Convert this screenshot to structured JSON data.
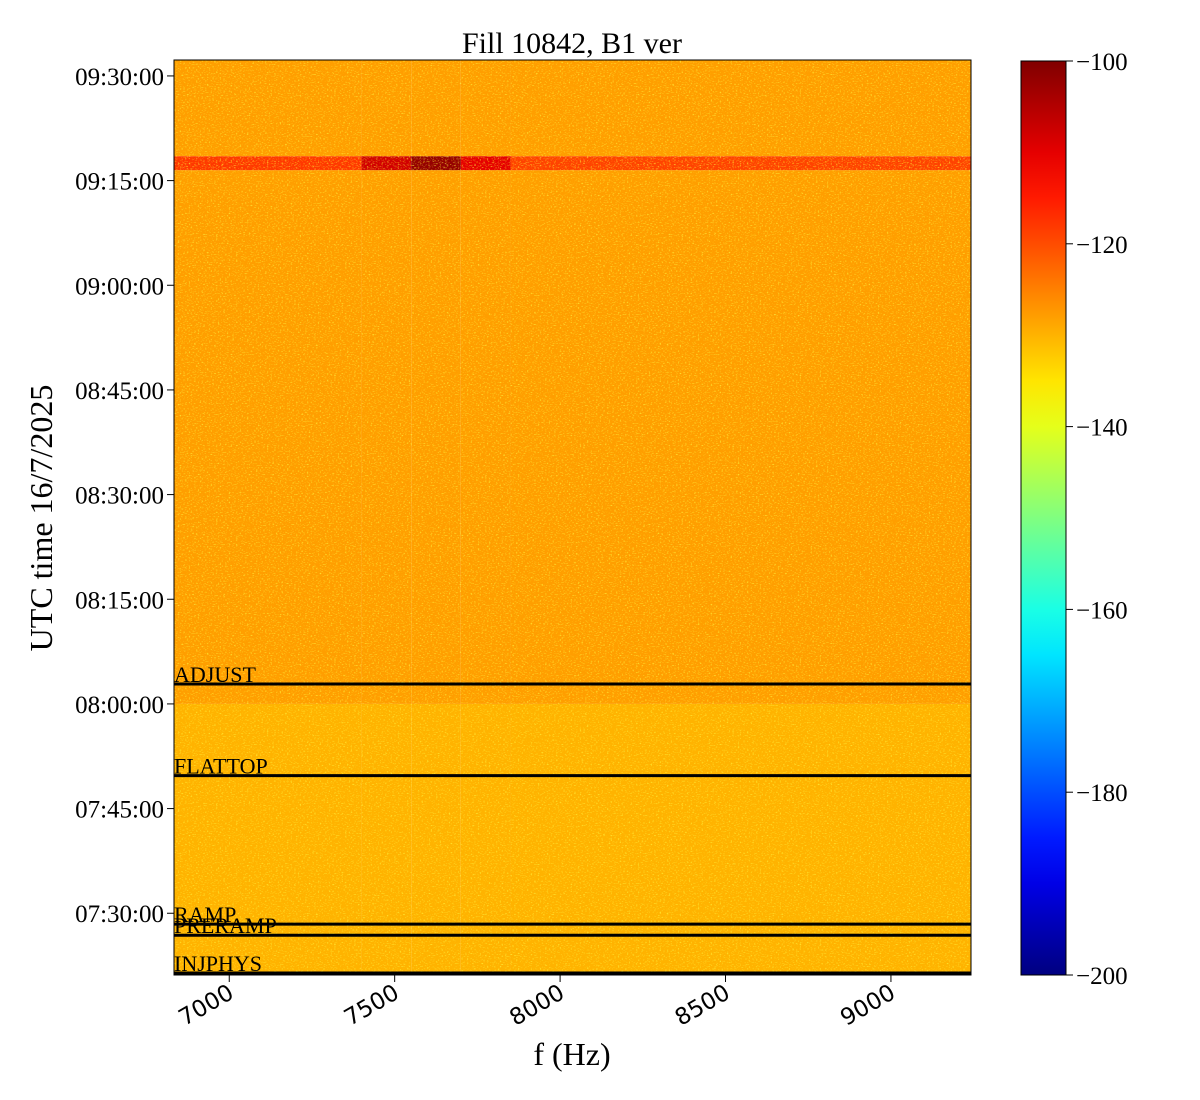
{
  "chart_data": {
    "type": "heatmap",
    "title": "Fill 10842, B1 ver",
    "xlabel": "f (Hz)",
    "ylabel": "UTC time 16/7/2025",
    "xlim": [
      6833,
      9242
    ],
    "xticks": [
      7000,
      7500,
      8000,
      8500,
      9000
    ],
    "ylim": [
      "07:21:09",
      "09:32:17"
    ],
    "yticks": [
      "07:30:00",
      "07:45:00",
      "08:00:00",
      "08:15:00",
      "08:30:00",
      "08:45:00",
      "09:00:00",
      "09:15:00",
      "09:30:00"
    ],
    "x_edges": [
      6833,
      7400,
      7550,
      7700,
      7850,
      9242
    ],
    "y_edges": [
      "07:21:09",
      "08:00:00",
      "09:16:30",
      "09:18:30",
      "09:32:17"
    ],
    "z": [
      [
        -130,
        -130,
        -130,
        -130,
        -130
      ],
      [
        -128,
        -128,
        -128,
        -128,
        -128
      ],
      [
        -118,
        -108,
        -102,
        -110,
        -119
      ],
      [
        -128,
        -128,
        -128,
        -128,
        -128
      ]
    ],
    "colormap": "jet",
    "clim": [
      -200,
      -100
    ],
    "cticks": [
      {
        "value": -100,
        "label": "−100"
      },
      {
        "value": -120,
        "label": "−120"
      },
      {
        "value": -140,
        "label": "−140"
      },
      {
        "value": -160,
        "label": "−160"
      },
      {
        "value": -180,
        "label": "−180"
      },
      {
        "value": -200,
        "label": "−200"
      }
    ],
    "events": [
      {
        "label": "ADJUST",
        "time": "08:02:51"
      },
      {
        "label": "FLATTOP",
        "time": "07:49:43"
      },
      {
        "label": "RAMP",
        "time": "07:28:26"
      },
      {
        "label": "PRERAMP",
        "time": "07:26:51"
      },
      {
        "label": "INJPHYS",
        "time": "07:21:26"
      }
    ]
  }
}
